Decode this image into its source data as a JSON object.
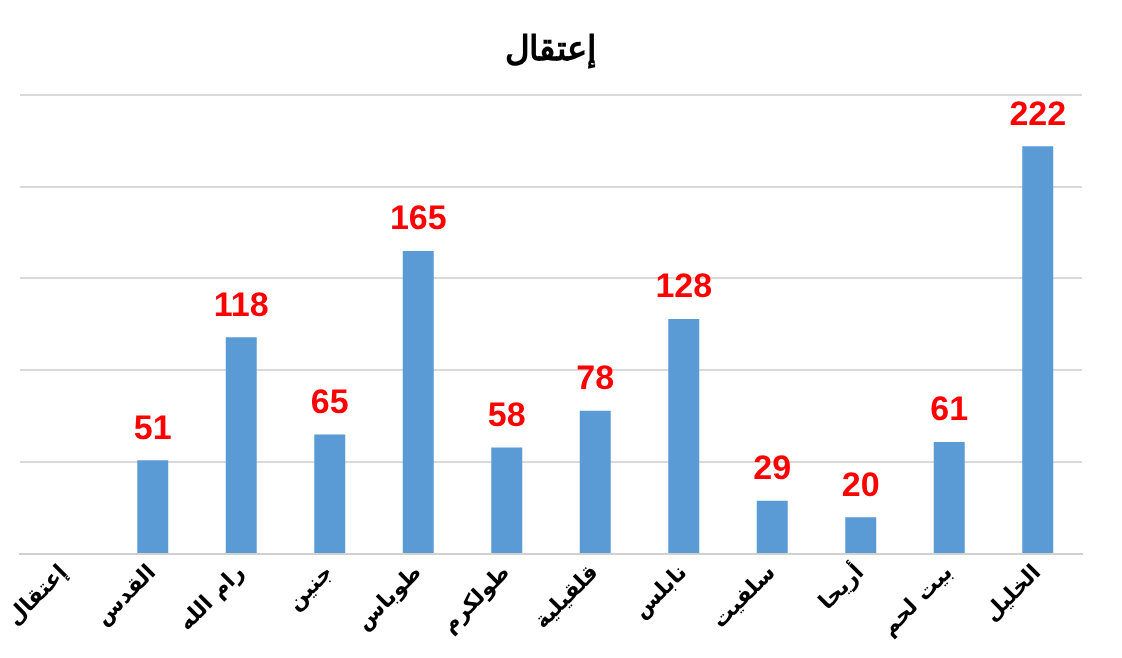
{
  "chart_data": {
    "type": "bar",
    "title": "إعتقال",
    "categories": [
      "إعتقال",
      "القدس",
      "رام الله",
      "جنين",
      "طوباس",
      "طولكرم",
      "قلقيلية",
      "نابلس",
      "سلفيت",
      "أريحا",
      "بيت لحم",
      "الخليل"
    ],
    "values": [
      null,
      51,
      118,
      65,
      165,
      58,
      78,
      128,
      29,
      20,
      61,
      222
    ],
    "color": "#5b9bd5",
    "grid": "y",
    "tick_labels": "x",
    "data_labels": true
  }
}
